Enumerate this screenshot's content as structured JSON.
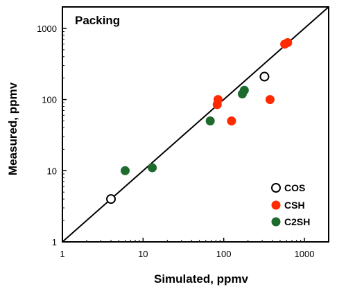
{
  "chart_data": {
    "type": "scatter",
    "title": "Packing",
    "xlabel": "Simulated, ppmv",
    "ylabel": "Measured, ppmv",
    "xscale": "log",
    "yscale": "log",
    "xlim": [
      1,
      2000
    ],
    "ylim": [
      1,
      2000
    ],
    "x_ticks": [
      1,
      10,
      100,
      1000
    ],
    "y_ticks": [
      1,
      10,
      100,
      1000
    ],
    "x_tick_labels": [
      "1",
      "10",
      "100",
      "1000"
    ],
    "y_tick_labels": [
      "1",
      "10",
      "100",
      "1000"
    ],
    "grid": false,
    "reference_line": "y = x",
    "legend_position": "bottom-right",
    "series": [
      {
        "name": "COS",
        "marker": "open-circle",
        "color": "#000000",
        "points": [
          [
            4,
            4
          ],
          [
            320,
            210
          ]
        ]
      },
      {
        "name": "CSH",
        "marker": "filled-circle",
        "color": "#ff2a00",
        "points": [
          [
            83,
            85
          ],
          [
            85,
            100
          ],
          [
            125,
            50
          ],
          [
            375,
            100
          ],
          [
            570,
            600
          ],
          [
            620,
            630
          ]
        ]
      },
      {
        "name": "C2SH",
        "marker": "filled-circle",
        "color": "#1e6b2e",
        "points": [
          [
            6,
            10
          ],
          [
            13,
            11
          ],
          [
            68,
            50
          ],
          [
            170,
            120
          ],
          [
            180,
            135
          ]
        ]
      }
    ]
  }
}
